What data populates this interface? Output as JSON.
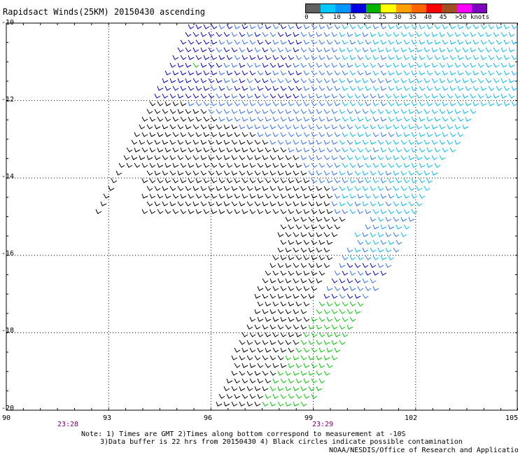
{
  "title": "Rapidsact Winds(25KM) 20150430 ascending",
  "colorbar": {
    "labels": [
      "0",
      "5",
      "10",
      "15",
      "20",
      "25",
      "30",
      "35",
      "40",
      "45",
      ">50 knots"
    ],
    "colors": [
      "#606060",
      "#00c8ff",
      "#0096ff",
      "#0000e0",
      "#00b400",
      "#ffff00",
      "#ffa000",
      "#ff6400",
      "#ff0000",
      "#a05020",
      "#ff00ff",
      "#8000c0"
    ]
  },
  "lat_labels": [
    "-10",
    "-12",
    "-14",
    "-16",
    "-18",
    "-20"
  ],
  "lon_labels": [
    "90",
    "93",
    "96",
    "99",
    "102",
    "105"
  ],
  "time_labels": [
    "23:28",
    "23:29"
  ],
  "notes": {
    "line1": "Note: 1) Times are GMT 2)Times along bottom correspond to measurement at -10S",
    "line2": "3)Data buffer is 22 hrs from 20150430 4) Black circles indicate possible contamination",
    "line3": "NOAA/NESDIS/Office of Research and Applications"
  },
  "map": {
    "lon_range": [
      90,
      105
    ],
    "lat_range": [
      -20,
      -10
    ],
    "grid_lons": [
      93,
      96,
      99,
      102
    ],
    "grid_lats": [
      -12,
      -14,
      -16,
      -18
    ],
    "swath_colors": {
      "calm": "#000000",
      "light": "#00c800",
      "moderate": "#0000d0",
      "fresh": "#3070ff",
      "strong": "#00b8ff"
    }
  }
}
